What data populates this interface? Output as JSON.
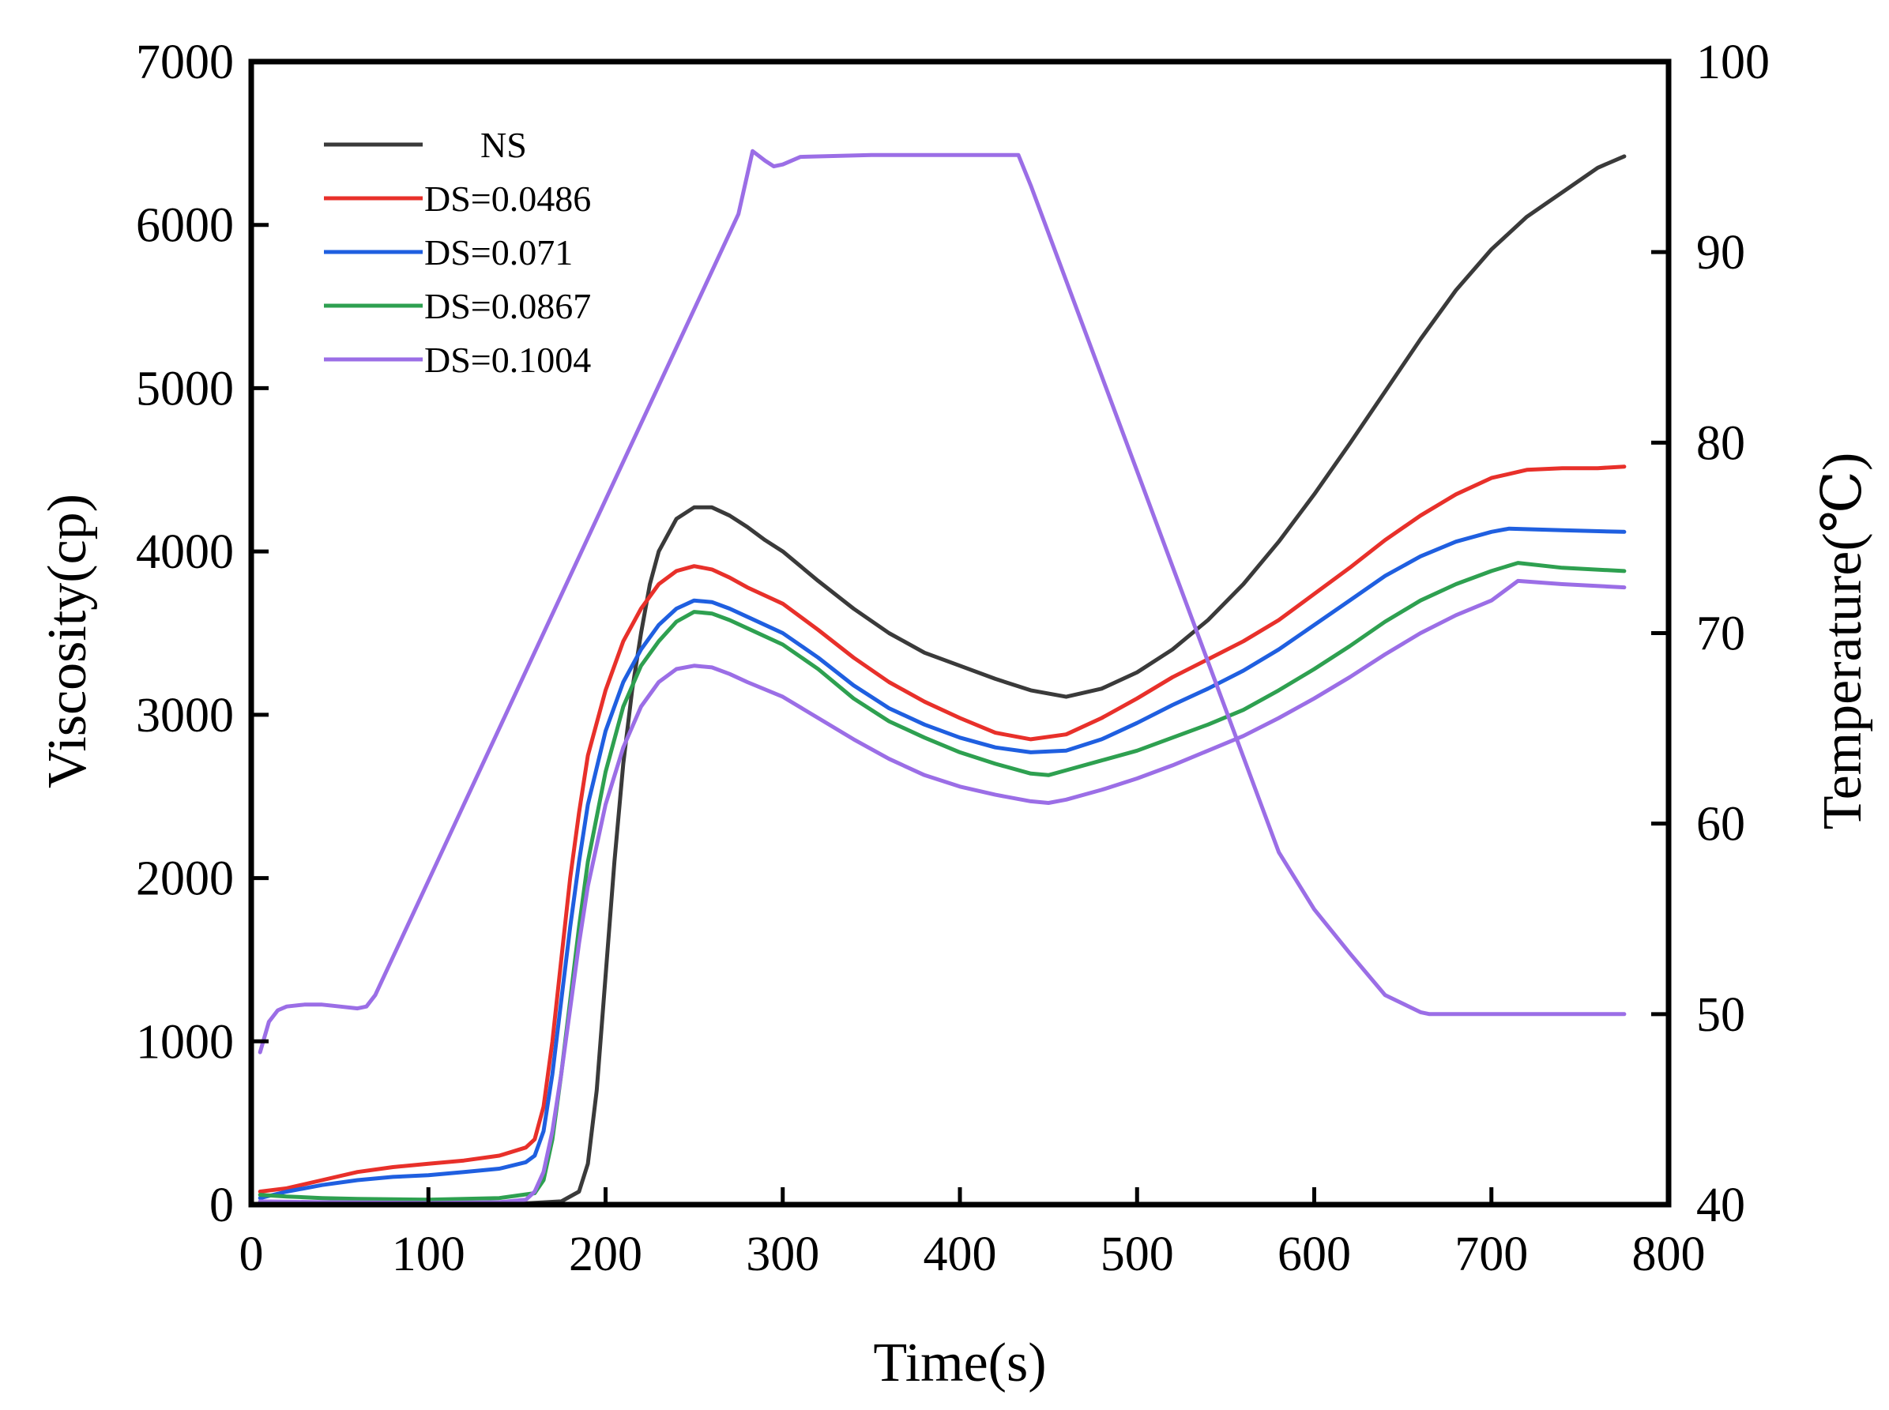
{
  "chart_data": {
    "type": "line",
    "title": "",
    "xlabel": "Time(s)",
    "ylabel": "Viscosity(cp)",
    "y2label": "Temperature(℃)",
    "xlim": [
      0,
      800
    ],
    "ylim": [
      0,
      7000
    ],
    "y2lim": [
      40,
      100
    ],
    "xticks": [
      0,
      100,
      200,
      300,
      400,
      500,
      600,
      700,
      800
    ],
    "yticks": [
      0,
      1000,
      2000,
      3000,
      4000,
      5000,
      6000,
      7000
    ],
    "y2ticks": [
      40,
      50,
      60,
      70,
      80,
      90,
      100
    ],
    "grid": false,
    "legend_position": "top-left",
    "series": [
      {
        "name": "NS",
        "color": "#3a3a3a",
        "axis": "left",
        "points": [
          [
            5,
            0
          ],
          [
            150,
            5
          ],
          [
            175,
            20
          ],
          [
            185,
            80
          ],
          [
            190,
            250
          ],
          [
            195,
            700
          ],
          [
            200,
            1400
          ],
          [
            205,
            2100
          ],
          [
            210,
            2700
          ],
          [
            215,
            3150
          ],
          [
            220,
            3500
          ],
          [
            225,
            3800
          ],
          [
            230,
            4000
          ],
          [
            240,
            4200
          ],
          [
            250,
            4270
          ],
          [
            260,
            4270
          ],
          [
            270,
            4220
          ],
          [
            280,
            4150
          ],
          [
            290,
            4070
          ],
          [
            300,
            4000
          ],
          [
            320,
            3820
          ],
          [
            340,
            3650
          ],
          [
            360,
            3500
          ],
          [
            380,
            3380
          ],
          [
            400,
            3300
          ],
          [
            420,
            3220
          ],
          [
            440,
            3150
          ],
          [
            460,
            3110
          ],
          [
            480,
            3160
          ],
          [
            500,
            3260
          ],
          [
            520,
            3400
          ],
          [
            540,
            3580
          ],
          [
            560,
            3800
          ],
          [
            580,
            4060
          ],
          [
            600,
            4350
          ],
          [
            620,
            4660
          ],
          [
            640,
            4980
          ],
          [
            660,
            5300
          ],
          [
            680,
            5600
          ],
          [
            700,
            5850
          ],
          [
            720,
            6050
          ],
          [
            740,
            6200
          ],
          [
            760,
            6350
          ],
          [
            775,
            6420
          ]
        ]
      },
      {
        "name": "DS=0.0486",
        "color": "#e8302a",
        "axis": "left",
        "points": [
          [
            5,
            80
          ],
          [
            20,
            100
          ],
          [
            40,
            150
          ],
          [
            60,
            200
          ],
          [
            80,
            230
          ],
          [
            100,
            250
          ],
          [
            120,
            270
          ],
          [
            140,
            300
          ],
          [
            155,
            350
          ],
          [
            160,
            400
          ],
          [
            165,
            600
          ],
          [
            170,
            1000
          ],
          [
            175,
            1500
          ],
          [
            180,
            2000
          ],
          [
            185,
            2400
          ],
          [
            190,
            2750
          ],
          [
            200,
            3150
          ],
          [
            210,
            3450
          ],
          [
            220,
            3650
          ],
          [
            230,
            3800
          ],
          [
            240,
            3880
          ],
          [
            250,
            3910
          ],
          [
            260,
            3890
          ],
          [
            270,
            3840
          ],
          [
            280,
            3780
          ],
          [
            300,
            3680
          ],
          [
            320,
            3520
          ],
          [
            340,
            3350
          ],
          [
            360,
            3200
          ],
          [
            380,
            3080
          ],
          [
            400,
            2980
          ],
          [
            420,
            2890
          ],
          [
            440,
            2850
          ],
          [
            460,
            2880
          ],
          [
            480,
            2980
          ],
          [
            500,
            3100
          ],
          [
            520,
            3230
          ],
          [
            540,
            3340
          ],
          [
            560,
            3450
          ],
          [
            580,
            3580
          ],
          [
            600,
            3740
          ],
          [
            620,
            3900
          ],
          [
            640,
            4070
          ],
          [
            660,
            4220
          ],
          [
            680,
            4350
          ],
          [
            700,
            4450
          ],
          [
            720,
            4500
          ],
          [
            740,
            4510
          ],
          [
            760,
            4510
          ],
          [
            775,
            4520
          ]
        ]
      },
      {
        "name": "DS=0.071",
        "color": "#1f5fe0",
        "axis": "left",
        "points": [
          [
            5,
            40
          ],
          [
            20,
            80
          ],
          [
            40,
            120
          ],
          [
            60,
            150
          ],
          [
            80,
            170
          ],
          [
            100,
            180
          ],
          [
            120,
            200
          ],
          [
            140,
            220
          ],
          [
            155,
            260
          ],
          [
            160,
            300
          ],
          [
            165,
            450
          ],
          [
            170,
            800
          ],
          [
            175,
            1250
          ],
          [
            180,
            1700
          ],
          [
            185,
            2100
          ],
          [
            190,
            2450
          ],
          [
            200,
            2900
          ],
          [
            210,
            3200
          ],
          [
            220,
            3400
          ],
          [
            230,
            3550
          ],
          [
            240,
            3650
          ],
          [
            250,
            3700
          ],
          [
            260,
            3690
          ],
          [
            270,
            3650
          ],
          [
            280,
            3600
          ],
          [
            300,
            3500
          ],
          [
            320,
            3350
          ],
          [
            340,
            3180
          ],
          [
            360,
            3040
          ],
          [
            380,
            2940
          ],
          [
            400,
            2860
          ],
          [
            420,
            2800
          ],
          [
            440,
            2770
          ],
          [
            460,
            2780
          ],
          [
            480,
            2850
          ],
          [
            500,
            2950
          ],
          [
            520,
            3060
          ],
          [
            540,
            3160
          ],
          [
            560,
            3270
          ],
          [
            580,
            3400
          ],
          [
            600,
            3550
          ],
          [
            620,
            3700
          ],
          [
            640,
            3850
          ],
          [
            660,
            3970
          ],
          [
            680,
            4060
          ],
          [
            700,
            4120
          ],
          [
            710,
            4140
          ],
          [
            740,
            4130
          ],
          [
            775,
            4120
          ]
        ]
      },
      {
        "name": "DS=0.0867",
        "color": "#2ea050",
        "axis": "left",
        "points": [
          [
            5,
            60
          ],
          [
            20,
            50
          ],
          [
            40,
            40
          ],
          [
            60,
            35
          ],
          [
            100,
            30
          ],
          [
            140,
            40
          ],
          [
            160,
            70
          ],
          [
            165,
            150
          ],
          [
            170,
            400
          ],
          [
            175,
            800
          ],
          [
            180,
            1250
          ],
          [
            185,
            1700
          ],
          [
            190,
            2100
          ],
          [
            200,
            2650
          ],
          [
            210,
            3050
          ],
          [
            220,
            3300
          ],
          [
            230,
            3450
          ],
          [
            240,
            3570
          ],
          [
            250,
            3630
          ],
          [
            260,
            3620
          ],
          [
            270,
            3580
          ],
          [
            280,
            3530
          ],
          [
            300,
            3430
          ],
          [
            320,
            3280
          ],
          [
            340,
            3100
          ],
          [
            360,
            2960
          ],
          [
            380,
            2860
          ],
          [
            400,
            2770
          ],
          [
            420,
            2700
          ],
          [
            440,
            2640
          ],
          [
            450,
            2630
          ],
          [
            460,
            2660
          ],
          [
            480,
            2720
          ],
          [
            500,
            2780
          ],
          [
            520,
            2860
          ],
          [
            540,
            2940
          ],
          [
            560,
            3030
          ],
          [
            580,
            3150
          ],
          [
            600,
            3280
          ],
          [
            620,
            3420
          ],
          [
            640,
            3570
          ],
          [
            660,
            3700
          ],
          [
            680,
            3800
          ],
          [
            700,
            3880
          ],
          [
            715,
            3930
          ],
          [
            740,
            3900
          ],
          [
            775,
            3880
          ]
        ]
      },
      {
        "name": "DS=0.1004",
        "color": "#9b6ee6",
        "axis": "left",
        "points": [
          [
            5,
            20
          ],
          [
            40,
            15
          ],
          [
            100,
            10
          ],
          [
            140,
            15
          ],
          [
            155,
            30
          ],
          [
            160,
            80
          ],
          [
            165,
            200
          ],
          [
            170,
            450
          ],
          [
            175,
            800
          ],
          [
            180,
            1200
          ],
          [
            185,
            1600
          ],
          [
            190,
            1950
          ],
          [
            200,
            2450
          ],
          [
            210,
            2800
          ],
          [
            220,
            3050
          ],
          [
            230,
            3200
          ],
          [
            240,
            3280
          ],
          [
            250,
            3300
          ],
          [
            260,
            3290
          ],
          [
            270,
            3250
          ],
          [
            280,
            3200
          ],
          [
            300,
            3110
          ],
          [
            320,
            2980
          ],
          [
            340,
            2850
          ],
          [
            360,
            2730
          ],
          [
            380,
            2630
          ],
          [
            400,
            2560
          ],
          [
            420,
            2510
          ],
          [
            440,
            2470
          ],
          [
            450,
            2460
          ],
          [
            460,
            2480
          ],
          [
            480,
            2540
          ],
          [
            500,
            2610
          ],
          [
            520,
            2690
          ],
          [
            540,
            2780
          ],
          [
            560,
            2870
          ],
          [
            580,
            2980
          ],
          [
            600,
            3100
          ],
          [
            620,
            3230
          ],
          [
            640,
            3370
          ],
          [
            660,
            3500
          ],
          [
            680,
            3610
          ],
          [
            700,
            3700
          ],
          [
            715,
            3820
          ],
          [
            740,
            3800
          ],
          [
            775,
            3780
          ]
        ]
      },
      {
        "name": "Temperature",
        "color": "#9b6ee6",
        "axis": "right",
        "points": [
          [
            5,
            48
          ],
          [
            10,
            49.6
          ],
          [
            15,
            50.2
          ],
          [
            20,
            50.4
          ],
          [
            30,
            50.5
          ],
          [
            40,
            50.5
          ],
          [
            50,
            50.4
          ],
          [
            60,
            50.3
          ],
          [
            65,
            50.4
          ],
          [
            70,
            51
          ],
          [
            80,
            53
          ],
          [
            100,
            57
          ],
          [
            120,
            61
          ],
          [
            140,
            65
          ],
          [
            160,
            69
          ],
          [
            180,
            73
          ],
          [
            200,
            77
          ],
          [
            220,
            81
          ],
          [
            240,
            85
          ],
          [
            260,
            89
          ],
          [
            275,
            92
          ],
          [
            283,
            95.3
          ],
          [
            290,
            94.8
          ],
          [
            295,
            94.5
          ],
          [
            300,
            94.6
          ],
          [
            310,
            95
          ],
          [
            350,
            95.1
          ],
          [
            400,
            95.1
          ],
          [
            433,
            95.1
          ],
          [
            440,
            93.5
          ],
          [
            460,
            88.5
          ],
          [
            480,
            83.5
          ],
          [
            500,
            78.5
          ],
          [
            520,
            73.5
          ],
          [
            540,
            68.5
          ],
          [
            560,
            63.5
          ],
          [
            580,
            58.5
          ],
          [
            600,
            55.5
          ],
          [
            620,
            53.2
          ],
          [
            640,
            51
          ],
          [
            660,
            50.1
          ],
          [
            665,
            50
          ],
          [
            700,
            50
          ],
          [
            740,
            50
          ],
          [
            775,
            50
          ]
        ]
      }
    ]
  }
}
